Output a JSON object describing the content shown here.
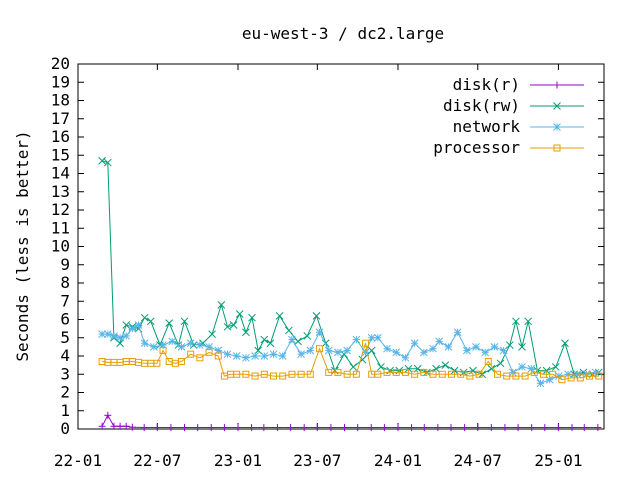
{
  "chart_data": {
    "type": "line",
    "title": "eu-west-3 / dc2.large",
    "ylabel": "Seconds (less is better)",
    "xlabel": "",
    "ylim": [
      0,
      20
    ],
    "yticks": [
      0,
      1,
      2,
      3,
      4,
      5,
      6,
      7,
      8,
      9,
      10,
      11,
      12,
      13,
      14,
      15,
      16,
      17,
      18,
      19,
      20
    ],
    "x_axis": {
      "type": "date",
      "range": [
        "2022-01-01",
        "2025-04-15"
      ],
      "ticks": [
        {
          "date": "2022-01-01",
          "label": "22-01"
        },
        {
          "date": "2022-07-01",
          "label": "22-07"
        },
        {
          "date": "2023-01-01",
          "label": "23-01"
        },
        {
          "date": "2023-07-01",
          "label": "23-07"
        },
        {
          "date": "2024-01-01",
          "label": "24-01"
        },
        {
          "date": "2024-07-01",
          "label": "24-07"
        },
        {
          "date": "2025-01-01",
          "label": "25-01"
        }
      ]
    },
    "legend_position": "top-right",
    "grid": false,
    "series": [
      {
        "name": "disk(r)",
        "color": "#9400d3",
        "marker": "plus",
        "points": [
          [
            "2022-02-25",
            0.15
          ],
          [
            "2022-03-10",
            0.75
          ],
          [
            "2022-03-24",
            0.15
          ],
          [
            "2022-04-07",
            0.15
          ],
          [
            "2022-04-21",
            0.15
          ],
          [
            "2022-05-05",
            0.1
          ],
          [
            "2022-06-01",
            0.08
          ],
          [
            "2022-07-01",
            0.08
          ],
          [
            "2022-08-01",
            0.08
          ],
          [
            "2022-09-01",
            0.08
          ],
          [
            "2022-10-01",
            0.08
          ],
          [
            "2022-11-01",
            0.08
          ],
          [
            "2022-12-01",
            0.08
          ],
          [
            "2023-01-01",
            0.08
          ],
          [
            "2023-02-01",
            0.08
          ],
          [
            "2023-03-01",
            0.08
          ],
          [
            "2023-04-01",
            0.08
          ],
          [
            "2023-05-01",
            0.08
          ],
          [
            "2023-06-01",
            0.08
          ],
          [
            "2023-07-01",
            0.08
          ],
          [
            "2023-08-01",
            0.08
          ],
          [
            "2023-09-01",
            0.08
          ],
          [
            "2023-10-01",
            0.08
          ],
          [
            "2023-11-01",
            0.08
          ],
          [
            "2023-12-01",
            0.08
          ],
          [
            "2024-01-01",
            0.08
          ],
          [
            "2024-02-01",
            0.08
          ],
          [
            "2024-03-01",
            0.08
          ],
          [
            "2024-04-01",
            0.08
          ],
          [
            "2024-05-01",
            0.08
          ],
          [
            "2024-06-01",
            0.08
          ],
          [
            "2024-07-01",
            0.08
          ],
          [
            "2024-08-01",
            0.08
          ],
          [
            "2024-09-01",
            0.08
          ],
          [
            "2024-10-01",
            0.08
          ],
          [
            "2024-11-01",
            0.08
          ],
          [
            "2024-12-01",
            0.08
          ],
          [
            "2025-01-01",
            0.08
          ],
          [
            "2025-02-01",
            0.08
          ],
          [
            "2025-03-01",
            0.08
          ],
          [
            "2025-04-01",
            0.08
          ]
        ]
      },
      {
        "name": "disk(rw)",
        "color": "#009e73",
        "marker": "cross",
        "points": [
          [
            "2022-02-25",
            14.7
          ],
          [
            "2022-03-10",
            14.6
          ],
          [
            "2022-03-24",
            5.0
          ],
          [
            "2022-04-07",
            4.7
          ],
          [
            "2022-04-21",
            5.7
          ],
          [
            "2022-05-05",
            5.6
          ],
          [
            "2022-05-19",
            5.5
          ],
          [
            "2022-06-02",
            6.1
          ],
          [
            "2022-06-16",
            5.9
          ],
          [
            "2022-07-07",
            4.6
          ],
          [
            "2022-07-28",
            5.8
          ],
          [
            "2022-08-18",
            4.6
          ],
          [
            "2022-09-01",
            5.9
          ],
          [
            "2022-09-22",
            4.6
          ],
          [
            "2022-10-13",
            4.7
          ],
          [
            "2022-11-03",
            5.2
          ],
          [
            "2022-11-24",
            6.8
          ],
          [
            "2022-12-08",
            5.6
          ],
          [
            "2022-12-22",
            5.7
          ],
          [
            "2023-01-05",
            6.3
          ],
          [
            "2023-01-19",
            5.3
          ],
          [
            "2023-02-02",
            6.1
          ],
          [
            "2023-02-16",
            4.3
          ],
          [
            "2023-03-02",
            4.9
          ],
          [
            "2023-03-16",
            4.7
          ],
          [
            "2023-04-06",
            6.2
          ],
          [
            "2023-04-27",
            5.4
          ],
          [
            "2023-05-18",
            4.8
          ],
          [
            "2023-06-08",
            5.1
          ],
          [
            "2023-06-29",
            6.2
          ],
          [
            "2023-07-20",
            4.7
          ],
          [
            "2023-08-10",
            3.2
          ],
          [
            "2023-08-31",
            4.1
          ],
          [
            "2023-09-21",
            3.4
          ],
          [
            "2023-10-12",
            3.8
          ],
          [
            "2023-11-02",
            4.3
          ],
          [
            "2023-11-23",
            3.4
          ],
          [
            "2023-12-14",
            3.2
          ],
          [
            "2024-01-04",
            3.2
          ],
          [
            "2024-01-25",
            3.3
          ],
          [
            "2024-02-15",
            3.3
          ],
          [
            "2024-03-07",
            3.1
          ],
          [
            "2024-03-28",
            3.3
          ],
          [
            "2024-04-18",
            3.5
          ],
          [
            "2024-05-09",
            3.2
          ],
          [
            "2024-05-30",
            3.1
          ],
          [
            "2024-06-20",
            3.2
          ],
          [
            "2024-07-11",
            3.0
          ],
          [
            "2024-08-01",
            3.3
          ],
          [
            "2024-08-22",
            3.6
          ],
          [
            "2024-09-12",
            4.6
          ],
          [
            "2024-09-26",
            5.9
          ],
          [
            "2024-10-10",
            4.5
          ],
          [
            "2024-10-24",
            5.9
          ],
          [
            "2024-11-14",
            3.2
          ],
          [
            "2024-12-05",
            3.2
          ],
          [
            "2024-12-26",
            3.4
          ],
          [
            "2025-01-16",
            4.7
          ],
          [
            "2025-02-06",
            3.0
          ],
          [
            "2025-02-27",
            3.1
          ],
          [
            "2025-03-20",
            3.0
          ],
          [
            "2025-04-03",
            3.1
          ]
        ]
      },
      {
        "name": "network",
        "color": "#56b4e9",
        "marker": "star",
        "points": [
          [
            "2022-02-25",
            5.2
          ],
          [
            "2022-03-10",
            5.2
          ],
          [
            "2022-03-24",
            5.1
          ],
          [
            "2022-04-07",
            5.0
          ],
          [
            "2022-04-21",
            5.1
          ],
          [
            "2022-05-05",
            5.5
          ],
          [
            "2022-05-19",
            5.7
          ],
          [
            "2022-06-02",
            4.7
          ],
          [
            "2022-06-23",
            4.5
          ],
          [
            "2022-07-14",
            4.6
          ],
          [
            "2022-08-04",
            4.8
          ],
          [
            "2022-08-25",
            4.5
          ],
          [
            "2022-09-15",
            4.7
          ],
          [
            "2022-10-06",
            4.6
          ],
          [
            "2022-10-27",
            4.5
          ],
          [
            "2022-11-17",
            4.3
          ],
          [
            "2022-12-08",
            4.1
          ],
          [
            "2022-12-29",
            4.0
          ],
          [
            "2023-01-19",
            3.9
          ],
          [
            "2023-02-09",
            4.0
          ],
          [
            "2023-03-02",
            4.0
          ],
          [
            "2023-03-23",
            4.1
          ],
          [
            "2023-04-13",
            4.0
          ],
          [
            "2023-05-04",
            4.9
          ],
          [
            "2023-05-25",
            4.1
          ],
          [
            "2023-06-15",
            4.3
          ],
          [
            "2023-07-06",
            5.3
          ],
          [
            "2023-07-27",
            4.3
          ],
          [
            "2023-08-17",
            4.2
          ],
          [
            "2023-09-07",
            4.3
          ],
          [
            "2023-09-28",
            4.9
          ],
          [
            "2023-10-19",
            4.2
          ],
          [
            "2023-11-02",
            5.0
          ],
          [
            "2023-11-16",
            5.0
          ],
          [
            "2023-12-07",
            4.4
          ],
          [
            "2023-12-28",
            4.2
          ],
          [
            "2024-01-18",
            3.9
          ],
          [
            "2024-02-08",
            4.7
          ],
          [
            "2024-02-29",
            4.2
          ],
          [
            "2024-03-21",
            4.4
          ],
          [
            "2024-04-04",
            4.8
          ],
          [
            "2024-04-25",
            4.5
          ],
          [
            "2024-05-16",
            5.3
          ],
          [
            "2024-06-06",
            4.3
          ],
          [
            "2024-06-27",
            4.5
          ],
          [
            "2024-07-18",
            4.2
          ],
          [
            "2024-08-08",
            4.5
          ],
          [
            "2024-08-29",
            4.3
          ],
          [
            "2024-09-19",
            3.1
          ],
          [
            "2024-10-10",
            3.4
          ],
          [
            "2024-10-31",
            3.3
          ],
          [
            "2024-11-21",
            2.5
          ],
          [
            "2024-12-12",
            2.7
          ],
          [
            "2025-01-02",
            2.9
          ],
          [
            "2025-01-23",
            3.0
          ],
          [
            "2025-02-13",
            3.0
          ],
          [
            "2025-03-06",
            3.0
          ],
          [
            "2025-03-27",
            3.1
          ]
        ]
      },
      {
        "name": "processor",
        "color": "#e69f00",
        "marker": "square",
        "points": [
          [
            "2022-02-25",
            3.7
          ],
          [
            "2022-03-10",
            3.65
          ],
          [
            "2022-03-24",
            3.65
          ],
          [
            "2022-04-07",
            3.65
          ],
          [
            "2022-04-21",
            3.7
          ],
          [
            "2022-05-05",
            3.7
          ],
          [
            "2022-05-19",
            3.65
          ],
          [
            "2022-06-02",
            3.6
          ],
          [
            "2022-06-16",
            3.6
          ],
          [
            "2022-06-30",
            3.6
          ],
          [
            "2022-07-14",
            4.3
          ],
          [
            "2022-07-28",
            3.7
          ],
          [
            "2022-08-11",
            3.6
          ],
          [
            "2022-08-25",
            3.7
          ],
          [
            "2022-09-15",
            4.1
          ],
          [
            "2022-10-06",
            3.9
          ],
          [
            "2022-10-27",
            4.2
          ],
          [
            "2022-11-17",
            4.0
          ],
          [
            "2022-12-01",
            2.9
          ],
          [
            "2022-12-15",
            3.0
          ],
          [
            "2022-12-29",
            3.0
          ],
          [
            "2023-01-19",
            3.0
          ],
          [
            "2023-02-09",
            2.9
          ],
          [
            "2023-03-02",
            3.0
          ],
          [
            "2023-03-23",
            2.9
          ],
          [
            "2023-04-13",
            2.9
          ],
          [
            "2023-05-04",
            3.0
          ],
          [
            "2023-05-25",
            3.0
          ],
          [
            "2023-06-15",
            3.0
          ],
          [
            "2023-07-06",
            4.4
          ],
          [
            "2023-07-27",
            3.1
          ],
          [
            "2023-08-17",
            3.1
          ],
          [
            "2023-09-07",
            3.0
          ],
          [
            "2023-09-28",
            3.0
          ],
          [
            "2023-10-19",
            4.7
          ],
          [
            "2023-11-02",
            3.0
          ],
          [
            "2023-11-16",
            3.0
          ],
          [
            "2023-12-07",
            3.1
          ],
          [
            "2023-12-28",
            3.1
          ],
          [
            "2024-01-18",
            3.1
          ],
          [
            "2024-02-08",
            3.0
          ],
          [
            "2024-02-29",
            3.1
          ],
          [
            "2024-03-21",
            3.0
          ],
          [
            "2024-04-11",
            3.0
          ],
          [
            "2024-05-02",
            3.0
          ],
          [
            "2024-05-23",
            3.0
          ],
          [
            "2024-06-13",
            2.9
          ],
          [
            "2024-07-04",
            3.0
          ],
          [
            "2024-07-25",
            3.7
          ],
          [
            "2024-08-15",
            3.0
          ],
          [
            "2024-09-05",
            2.9
          ],
          [
            "2024-09-26",
            2.9
          ],
          [
            "2024-10-17",
            2.9
          ],
          [
            "2024-11-07",
            3.1
          ],
          [
            "2024-11-28",
            3.0
          ],
          [
            "2024-12-19",
            3.0
          ],
          [
            "2025-01-09",
            2.7
          ],
          [
            "2025-01-30",
            2.8
          ],
          [
            "2025-02-20",
            2.8
          ],
          [
            "2025-03-13",
            2.9
          ],
          [
            "2025-04-03",
            2.9
          ]
        ]
      }
    ]
  }
}
